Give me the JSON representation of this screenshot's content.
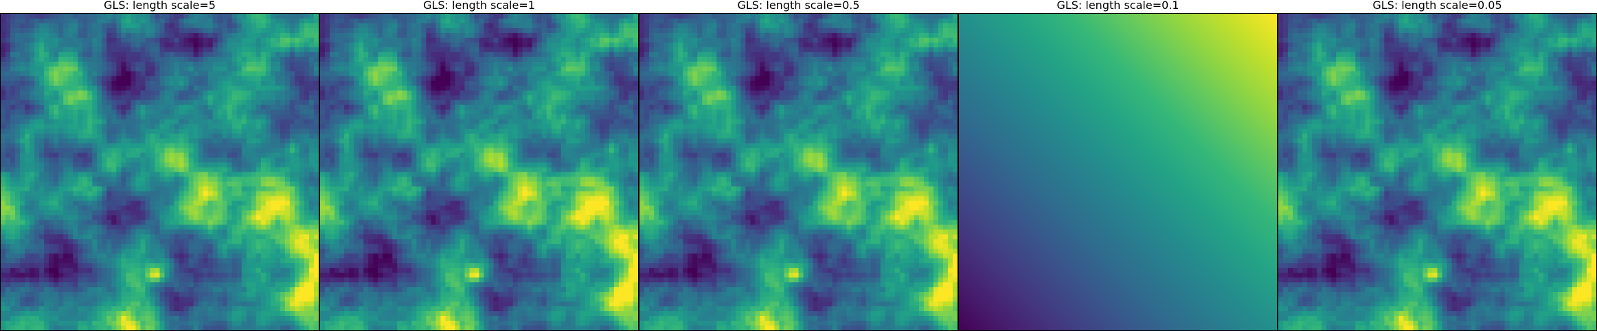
{
  "figure": {
    "panels": [
      {
        "id": "p0",
        "title": "GLS: length scale=5"
      },
      {
        "id": "p1",
        "title": "GLS: length scale=1"
      },
      {
        "id": "p2",
        "title": "GLS: length scale=0.5"
      },
      {
        "id": "p3",
        "title": "GLS: length scale=0.1"
      },
      {
        "id": "p4",
        "title": "GLS: length scale=0.05"
      }
    ]
  },
  "colors": {
    "colormap": "viridis",
    "viridis_stops": [
      "#440154",
      "#482878",
      "#3e4989",
      "#31688e",
      "#26828e",
      "#1f9e89",
      "#35b779",
      "#6ece58",
      "#b5de2b",
      "#fde725"
    ],
    "frame": "#000000",
    "background": "#ffffff"
  },
  "chart_data": [
    {
      "type": "heatmap",
      "title": "GLS: length scale=5",
      "colormap": "viridis",
      "pattern": "spatial-field"
    },
    {
      "type": "heatmap",
      "title": "GLS: length scale=1",
      "colormap": "viridis",
      "pattern": "spatial-field"
    },
    {
      "type": "heatmap",
      "title": "GLS: length scale=0.5",
      "colormap": "viridis",
      "pattern": "spatial-field"
    },
    {
      "type": "heatmap",
      "title": "GLS: length scale=0.1",
      "colormap": "viridis",
      "pattern": "smooth-diagonal-gradient"
    },
    {
      "type": "heatmap",
      "title": "GLS: length scale=0.05",
      "colormap": "viridis",
      "pattern": "spatial-field"
    }
  ]
}
